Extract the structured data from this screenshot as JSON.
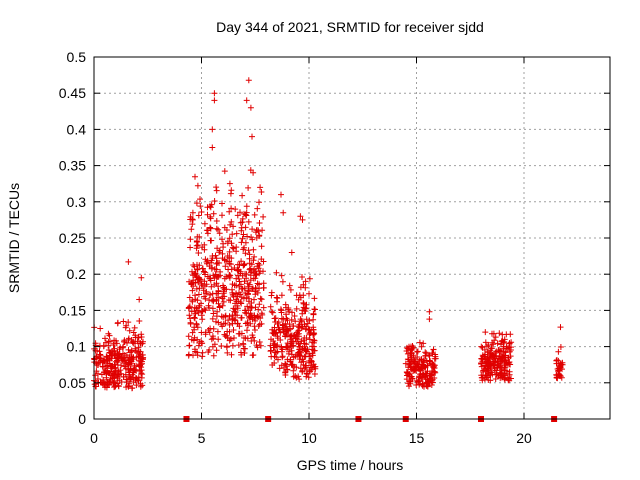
{
  "chart_data": {
    "type": "scatter",
    "title": "Day 344 of 2021, SRMTID for receiver sjdd",
    "xlabel": "GPS time / hours",
    "ylabel": "SRMTID / TECUs",
    "xlim": [
      0,
      24
    ],
    "ylim": [
      0,
      0.5
    ],
    "grid": true,
    "xticks": [
      0,
      5,
      10,
      15,
      20
    ],
    "xtick_labels": [
      "0",
      "5",
      "10",
      "15",
      "20"
    ],
    "yticks": [
      0,
      0.05,
      0.1,
      0.15,
      0.2,
      0.25,
      0.3,
      0.35,
      0.4,
      0.45,
      0.5
    ],
    "ytick_labels": [
      "0",
      "0.05",
      "0.1",
      "0.15",
      "0.2",
      "0.25",
      "0.3",
      "0.35",
      "0.4",
      "0.45",
      "0.5"
    ],
    "series_color": "#e00000",
    "marker": "+",
    "zero_markers_x": [
      4.3,
      8.1,
      12.3,
      14.5,
      18.0,
      21.4
    ],
    "clusters": [
      {
        "x_range": [
          0.0,
          2.3
        ],
        "y_base": 0.065,
        "y_spread": 0.03,
        "count": 320,
        "outliers": [
          [
            1.6,
            0.217
          ],
          [
            2.2,
            0.195
          ],
          [
            1.1,
            0.132
          ],
          [
            2.1,
            0.165
          ]
        ]
      },
      {
        "x_range": [
          4.4,
          7.9
        ],
        "y_base": 0.15,
        "y_spread": 0.08,
        "count": 560,
        "outliers": [
          [
            5.6,
            0.45
          ],
          [
            5.6,
            0.44
          ],
          [
            5.5,
            0.4
          ],
          [
            5.5,
            0.375
          ],
          [
            7.2,
            0.468
          ],
          [
            7.1,
            0.44
          ],
          [
            7.3,
            0.43
          ],
          [
            7.35,
            0.39
          ],
          [
            7.4,
            0.34
          ],
          [
            4.6,
            0.285
          ]
        ]
      },
      {
        "x_range": [
          8.2,
          10.3
        ],
        "y_base": 0.09,
        "y_spread": 0.045,
        "count": 300,
        "outliers": [
          [
            8.7,
            0.31
          ],
          [
            8.8,
            0.285
          ],
          [
            9.6,
            0.28
          ],
          [
            9.7,
            0.275
          ],
          [
            9.2,
            0.23
          ]
        ]
      },
      {
        "x_range": [
          14.5,
          15.9
        ],
        "y_base": 0.06,
        "y_spread": 0.02,
        "count": 180,
        "outliers": [
          [
            14.6,
            0.097
          ],
          [
            15.6,
            0.148
          ],
          [
            15.6,
            0.138
          ]
        ]
      },
      {
        "x_range": [
          18.0,
          19.4
        ],
        "y_base": 0.07,
        "y_spread": 0.022,
        "count": 200,
        "outliers": [
          [
            18.2,
            0.12
          ],
          [
            18.6,
            0.118
          ],
          [
            19.1,
            0.11
          ]
        ]
      },
      {
        "x_range": [
          21.5,
          21.8
        ],
        "y_base": 0.065,
        "y_spread": 0.015,
        "count": 30,
        "outliers": [
          [
            21.7,
            0.127
          ],
          [
            21.6,
            0.093
          ]
        ]
      }
    ]
  }
}
